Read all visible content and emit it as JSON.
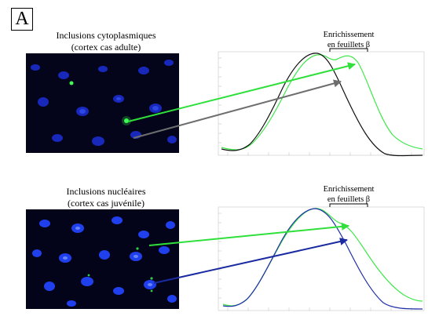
{
  "panel_label": "A",
  "rows": [
    {
      "caption_line1": "Inclusions cytoplasmiques",
      "caption_line2": "(cortex cas adulte)",
      "annotation_line1": "Enrichissement",
      "annotation_line2": "en feuillets β",
      "overlay_colors": {
        "black": "#111111",
        "green": "#3ee84a"
      }
    },
    {
      "caption_line1": "Inclusions nucléaires",
      "caption_line2": "(cortex cas juvénile)",
      "annotation_line1": "Enrichissement",
      "annotation_line2": "en feuillets β",
      "overlay_colors": {
        "blue": "#1e2fa8",
        "green": "#3ee84a"
      }
    }
  ],
  "arrow_colors": {
    "green": "#2fe03a",
    "gray": "#6e6e6e",
    "blue": "#1a2aa0"
  }
}
